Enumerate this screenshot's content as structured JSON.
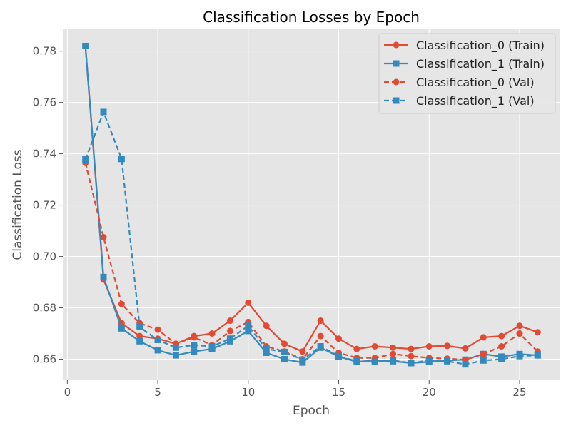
{
  "chart_data": {
    "type": "line",
    "title": "Classification Losses by Epoch",
    "xlabel": "Epoch",
    "ylabel": "Classification Loss",
    "xlim": [
      -0.25,
      27.25
    ],
    "ylim": [
      0.6518,
      0.7888
    ],
    "xticks": [
      0,
      5,
      10,
      15,
      20,
      25
    ],
    "yticks": [
      0.66,
      0.68,
      0.7,
      0.72,
      0.74,
      0.76,
      0.78
    ],
    "ytick_labels": [
      "0.66",
      "0.68",
      "0.70",
      "0.72",
      "0.74",
      "0.76",
      "0.78"
    ],
    "grid": true,
    "legend_position": "top-right",
    "x": [
      1,
      2,
      3,
      4,
      5,
      6,
      7,
      8,
      9,
      10,
      11,
      12,
      13,
      14,
      15,
      16,
      17,
      18,
      19,
      20,
      21,
      22,
      23,
      24,
      25,
      26
    ],
    "series": [
      {
        "name": "Classification_0 (Train)",
        "color": "#e24a33",
        "marker": "circle",
        "dash": "solid",
        "values": [
          0.782,
          0.691,
          0.674,
          0.669,
          0.668,
          0.666,
          0.669,
          0.67,
          0.675,
          0.682,
          0.673,
          0.666,
          0.663,
          0.675,
          0.668,
          0.664,
          0.665,
          0.6645,
          0.664,
          0.665,
          0.6652,
          0.6642,
          0.6685,
          0.669,
          0.673,
          0.6705
        ]
      },
      {
        "name": "Classification_1 (Train)",
        "color": "#348abd",
        "marker": "square",
        "dash": "solid",
        "values": [
          0.782,
          0.692,
          0.672,
          0.667,
          0.6635,
          0.6615,
          0.663,
          0.664,
          0.667,
          0.671,
          0.6625,
          0.66,
          0.6587,
          0.6645,
          0.661,
          0.659,
          0.6595,
          0.6592,
          0.6585,
          0.659,
          0.6595,
          0.6598,
          0.662,
          0.661,
          0.662,
          0.6615
        ]
      },
      {
        "name": "Classification_0 (Val)",
        "color": "#e24a33",
        "marker": "circle",
        "dash": "dashed",
        "values": [
          0.7365,
          0.7075,
          0.6815,
          0.674,
          0.6715,
          0.666,
          0.6685,
          0.6655,
          0.671,
          0.6745,
          0.665,
          0.663,
          0.66,
          0.669,
          0.6625,
          0.6605,
          0.6605,
          0.662,
          0.6612,
          0.6605,
          0.6602,
          0.6598,
          0.662,
          0.665,
          0.67,
          0.663
        ]
      },
      {
        "name": "Classification_1 (Val)",
        "color": "#348abd",
        "marker": "square",
        "dash": "dashed",
        "values": [
          0.7378,
          0.7563,
          0.738,
          0.6725,
          0.6675,
          0.6645,
          0.6655,
          0.665,
          0.668,
          0.673,
          0.664,
          0.6628,
          0.6598,
          0.665,
          0.6612,
          0.6592,
          0.659,
          0.6595,
          0.6585,
          0.6595,
          0.6592,
          0.658,
          0.6595,
          0.66,
          0.6612,
          0.6615
        ]
      }
    ]
  }
}
